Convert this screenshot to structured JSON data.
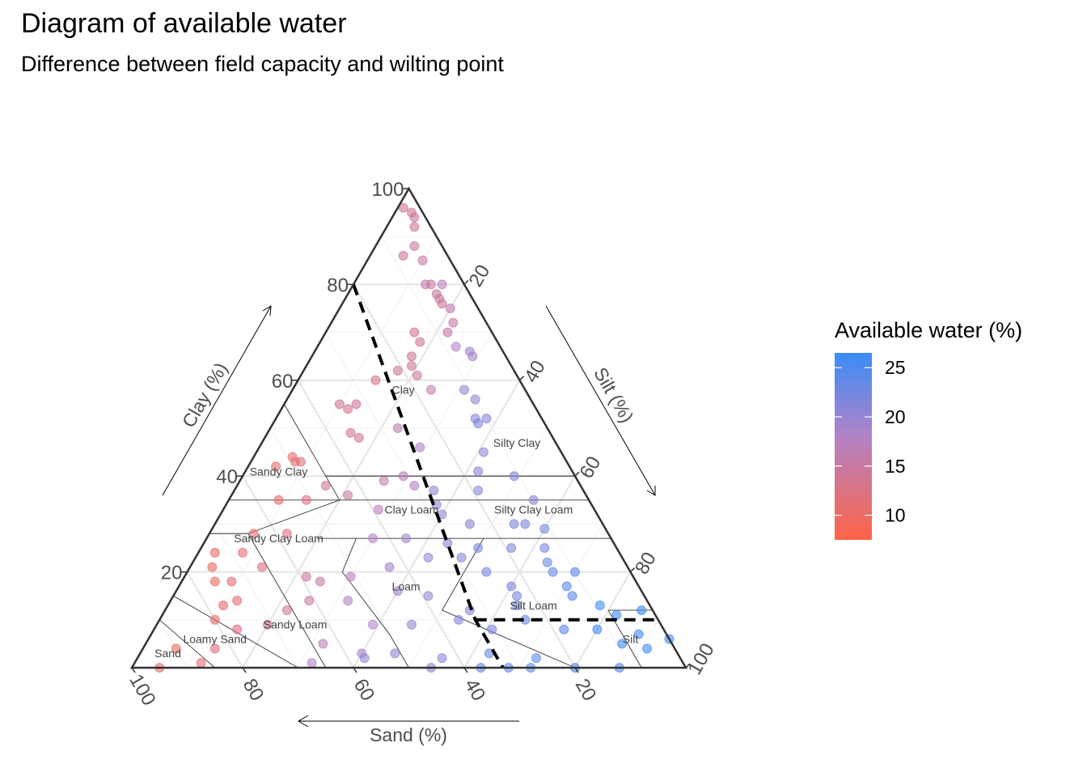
{
  "title": "Diagram of available water",
  "subtitle": "Difference between field capacity and wilting point",
  "chart_data": {
    "type": "scatter",
    "subtype": "ternary",
    "axes": {
      "clay": {
        "label": "Clay (%)",
        "ticks": [
          20,
          40,
          60,
          80,
          100
        ]
      },
      "silt": {
        "label": "Silt (%)",
        "ticks": [
          20,
          40,
          60,
          80,
          100
        ]
      },
      "sand": {
        "label": "Sand (%)",
        "ticks": [
          100,
          80,
          60,
          40,
          20
        ]
      }
    },
    "grid": true,
    "legend": {
      "title": "Available water (%)",
      "ticks": [
        25,
        20,
        15,
        10
      ],
      "range": [
        7.5,
        26.5
      ],
      "low_color": "#ff6347",
      "mid_color": "#b383c6",
      "high_color": "#3a8cf7",
      "placement": "right"
    },
    "texture_classes": [
      {
        "label": "Clay",
        "clay": 58,
        "silt": 20,
        "sand": 22
      },
      {
        "label": "Silty Clay",
        "clay": 47,
        "silt": 46,
        "sand": 7
      },
      {
        "label": "Sandy Clay",
        "clay": 41,
        "silt": 6,
        "sand": 53
      },
      {
        "label": "Clay Loam",
        "clay": 33,
        "silt": 34,
        "sand": 33
      },
      {
        "label": "Silty Clay Loam",
        "clay": 33,
        "silt": 56,
        "sand": 11
      },
      {
        "label": "Sandy Clay Loam",
        "clay": 27,
        "silt": 13,
        "sand": 60
      },
      {
        "label": "Loam",
        "clay": 17,
        "silt": 41,
        "sand": 42
      },
      {
        "label": "Silt Loam",
        "clay": 13,
        "silt": 66,
        "sand": 21
      },
      {
        "label": "Sandy Loam",
        "clay": 9,
        "silt": 25,
        "sand": 66
      },
      {
        "label": "Silt",
        "clay": 6,
        "silt": 87,
        "sand": 7
      },
      {
        "label": "Loamy Sand",
        "clay": 6,
        "silt": 12,
        "sand": 82
      },
      {
        "label": "Sand",
        "clay": 3,
        "silt": 5,
        "sand": 92
      }
    ],
    "texture_boundaries": [
      [
        [
          55,
          0,
          45
        ],
        [
          40,
          15,
          45
        ],
        [
          40,
          60,
          0
        ]
      ],
      [
        [
          40,
          15,
          45
        ],
        [
          35,
          20,
          45
        ],
        [
          35,
          65,
          0
        ]
      ],
      [
        [
          35,
          20,
          45
        ],
        [
          35,
          0,
          65
        ]
      ],
      [
        [
          28,
          0,
          72
        ],
        [
          28,
          7,
          65
        ],
        [
          20,
          15,
          65
        ],
        [
          0,
          35,
          65
        ]
      ],
      [
        [
          28,
          7,
          65
        ],
        [
          35,
          20,
          45
        ]
      ],
      [
        [
          40,
          15,
          45
        ],
        [
          40,
          60,
          0
        ]
      ],
      [
        [
          27,
          20,
          53
        ],
        [
          27,
          73,
          0
        ]
      ],
      [
        [
          27,
          27,
          46
        ],
        [
          20,
          28,
          52
        ],
        [
          7,
          43,
          50
        ],
        [
          0,
          50,
          50
        ]
      ],
      [
        [
          27,
          50,
          23
        ],
        [
          12,
          50,
          38
        ],
        [
          0,
          80,
          20
        ]
      ],
      [
        [
          12,
          80,
          8
        ],
        [
          12,
          88,
          0
        ]
      ],
      [
        [
          12,
          80,
          8
        ],
        [
          0,
          92,
          8
        ]
      ],
      [
        [
          15,
          0,
          85
        ],
        [
          0,
          30,
          70
        ]
      ],
      [
        [
          10,
          0,
          90
        ],
        [
          0,
          15,
          85
        ]
      ]
    ],
    "dashed_boundary": [
      [
        80,
        0,
        20
      ],
      [
        10,
        57,
        33
      ],
      [
        0,
        67,
        33
      ]
    ],
    "dashed_boundary_2": [
      [
        10,
        57,
        33
      ],
      [
        10,
        90,
        0
      ]
    ],
    "points": [
      [
        96,
        1,
        14
      ],
      [
        95,
        3,
        14
      ],
      [
        94,
        4,
        15
      ],
      [
        92,
        5,
        14
      ],
      [
        88,
        7,
        15
      ],
      [
        86,
        6,
        14
      ],
      [
        85,
        10,
        15
      ],
      [
        80,
        14,
        15
      ],
      [
        80,
        13,
        16
      ],
      [
        80,
        16,
        17
      ],
      [
        78,
        16,
        15
      ],
      [
        77,
        17,
        15
      ],
      [
        76,
        18,
        14
      ],
      [
        75,
        20,
        16
      ],
      [
        72,
        22,
        15
      ],
      [
        70,
        22,
        15
      ],
      [
        70,
        16,
        14
      ],
      [
        68,
        18,
        14
      ],
      [
        67,
        25,
        18
      ],
      [
        66,
        28,
        19
      ],
      [
        65,
        29,
        19
      ],
      [
        65,
        18,
        14
      ],
      [
        63,
        19,
        14
      ],
      [
        62,
        17,
        14
      ],
      [
        61,
        21,
        15
      ],
      [
        60,
        14,
        13
      ],
      [
        58,
        25,
        16
      ],
      [
        58,
        31,
        20
      ],
      [
        56,
        34,
        20
      ],
      [
        55,
        10,
        14
      ],
      [
        55,
        13,
        14
      ],
      [
        54,
        12,
        13
      ],
      [
        52,
        36,
        21
      ],
      [
        52,
        38,
        21
      ],
      [
        51,
        37,
        22
      ],
      [
        50,
        23,
        16
      ],
      [
        49,
        15,
        14
      ],
      [
        48,
        17,
        14
      ],
      [
        46,
        29,
        18
      ],
      [
        45,
        41,
        20
      ],
      [
        44,
        7,
        11
      ],
      [
        43,
        8,
        11
      ],
      [
        43,
        9,
        12
      ],
      [
        42,
        5,
        11
      ],
      [
        41,
        42,
        21
      ],
      [
        40,
        49,
        21
      ],
      [
        40,
        29,
        17
      ],
      [
        39,
        26,
        16
      ],
      [
        38,
        32,
        18
      ],
      [
        38,
        16,
        14
      ],
      [
        37,
        36,
        20
      ],
      [
        37,
        44,
        21
      ],
      [
        36,
        21,
        15
      ],
      [
        35,
        14,
        12
      ],
      [
        35,
        9,
        11
      ],
      [
        35,
        55,
        21
      ],
      [
        34,
        38,
        20
      ],
      [
        33,
        28,
        17
      ],
      [
        32,
        40,
        20
      ],
      [
        30,
        46,
        21
      ],
      [
        30,
        54,
        22
      ],
      [
        30,
        56,
        22
      ],
      [
        29,
        60,
        22
      ],
      [
        28,
        8,
        11
      ],
      [
        28,
        14,
        12
      ],
      [
        27,
        30,
        18
      ],
      [
        27,
        36,
        19
      ],
      [
        26,
        44,
        21
      ],
      [
        25,
        50,
        22
      ],
      [
        25,
        56,
        22
      ],
      [
        25,
        62,
        22
      ],
      [
        24,
        3,
        10
      ],
      [
        24,
        8,
        11
      ],
      [
        23,
        42,
        20
      ],
      [
        23,
        48,
        21
      ],
      [
        22,
        64,
        23
      ],
      [
        21,
        13,
        12
      ],
      [
        21,
        4,
        10
      ],
      [
        21,
        36,
        19
      ],
      [
        20,
        54,
        22
      ],
      [
        20,
        66,
        23
      ],
      [
        20,
        70,
        24
      ],
      [
        19,
        22,
        15
      ],
      [
        19,
        30,
        17
      ],
      [
        18,
        6,
        10
      ],
      [
        18,
        9,
        11
      ],
      [
        18,
        25,
        16
      ],
      [
        17,
        60,
        22
      ],
      [
        17,
        70,
        24
      ],
      [
        16,
        40,
        19
      ],
      [
        15,
        46,
        20
      ],
      [
        15,
        62,
        22
      ],
      [
        15,
        72,
        24
      ],
      [
        14,
        25,
        15
      ],
      [
        14,
        32,
        18
      ],
      [
        14,
        12,
        11
      ],
      [
        13,
        10,
        11
      ],
      [
        13,
        78,
        26
      ],
      [
        13,
        63,
        23
      ],
      [
        12,
        22,
        14
      ],
      [
        12,
        55,
        21
      ],
      [
        12,
        86,
        26
      ],
      [
        11,
        82,
        26
      ],
      [
        10,
        10,
        11
      ],
      [
        10,
        54,
        21
      ],
      [
        10,
        66,
        23
      ],
      [
        9,
        20,
        14
      ],
      [
        9,
        39,
        18
      ],
      [
        9,
        46,
        20
      ],
      [
        8,
        15,
        12
      ],
      [
        8,
        61,
        22
      ],
      [
        8,
        74,
        24
      ],
      [
        8,
        80,
        26
      ],
      [
        7,
        88,
        26
      ],
      [
        6,
        94,
        26
      ],
      [
        5,
        86,
        26
      ],
      [
        5,
        32,
        17
      ],
      [
        4,
        91,
        26
      ],
      [
        4,
        6,
        10
      ],
      [
        4,
        13,
        12
      ],
      [
        3,
        40,
        19
      ],
      [
        3,
        46,
        20
      ],
      [
        3,
        63,
        23
      ],
      [
        2,
        55,
        21
      ],
      [
        2,
        72,
        24
      ],
      [
        2,
        41,
        20
      ],
      [
        1,
        12,
        11
      ],
      [
        1,
        32,
        18
      ],
      [
        0,
        63,
        23
      ],
      [
        0,
        68,
        24
      ],
      [
        0,
        72,
        24
      ],
      [
        0,
        80,
        25
      ],
      [
        0,
        88,
        25
      ],
      [
        0,
        54,
        21
      ],
      [
        0,
        5,
        10
      ]
    ]
  }
}
